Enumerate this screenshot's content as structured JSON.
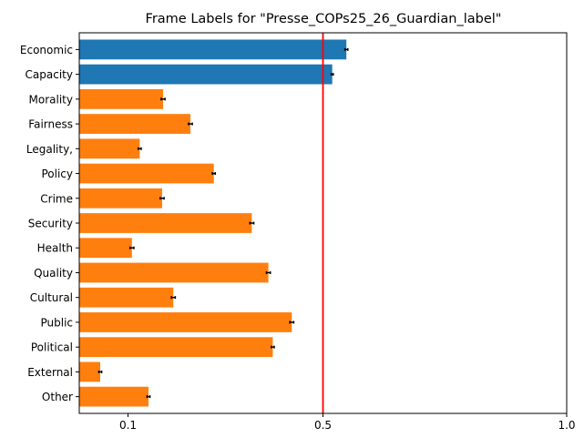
{
  "chart_data": {
    "type": "bar",
    "orientation": "horizontal",
    "title": "Frame Labels for \"Presse_COPs25_26_Guardian_label\"",
    "xlabel": "",
    "ylabel": "",
    "xlim": [
      0.0,
      1.0
    ],
    "x_ticks": [
      0.1,
      0.5,
      1.0
    ],
    "x_tick_labels": [
      "0.1",
      "0.5",
      "1.0"
    ],
    "threshold": 0.5,
    "categories": [
      "Economic",
      "Capacity",
      "Morality",
      "Fairness",
      "Legality,",
      "Policy",
      "Crime",
      "Security",
      "Health",
      "Quality",
      "Cultural",
      "Public",
      "Political",
      "External",
      "Other"
    ],
    "values": [
      0.548,
      0.519,
      0.172,
      0.228,
      0.124,
      0.276,
      0.17,
      0.354,
      0.108,
      0.388,
      0.193,
      0.436,
      0.397,
      0.043,
      0.142
    ],
    "errors": [
      0.003,
      0.002,
      0.004,
      0.004,
      0.003,
      0.003,
      0.004,
      0.004,
      0.004,
      0.004,
      0.004,
      0.004,
      0.003,
      0.003,
      0.003
    ],
    "bar_colors": [
      "#1f77b4",
      "#1f77b4",
      "#ff7f0e",
      "#ff7f0e",
      "#ff7f0e",
      "#ff7f0e",
      "#ff7f0e",
      "#ff7f0e",
      "#ff7f0e",
      "#ff7f0e",
      "#ff7f0e",
      "#ff7f0e",
      "#ff7f0e",
      "#ff7f0e",
      "#ff7f0e"
    ],
    "threshold_color": "#ff0000",
    "grid": false,
    "legend": "none"
  }
}
